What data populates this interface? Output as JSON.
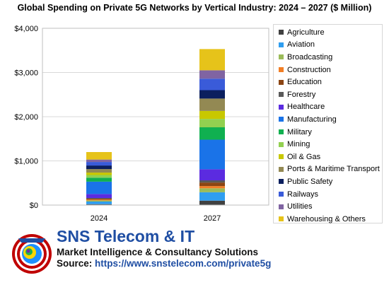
{
  "chart_data": {
    "type": "bar",
    "stacked": true,
    "title": "Global Spending on Private 5G Networks by Vertical Industry: 2024 – 2027 ($ Million)",
    "categories": [
      "2024",
      "2027"
    ],
    "ylim": [
      0,
      4000
    ],
    "yticks": [
      "$0",
      "$1,000",
      "$2,000",
      "$3,000",
      "$4,000"
    ],
    "ytick_values": [
      0,
      1000,
      2000,
      3000,
      4000
    ],
    "grid": true,
    "legend_position": "right",
    "series": [
      {
        "name": "Agriculture",
        "color": "#404040",
        "values": [
          20,
          100
        ]
      },
      {
        "name": "Aviation",
        "color": "#2f9ef0",
        "values": [
          60,
          190
        ]
      },
      {
        "name": "Broadcasting",
        "color": "#9bbb59",
        "values": [
          25,
          90
        ]
      },
      {
        "name": "Construction",
        "color": "#f27e25",
        "values": [
          20,
          50
        ]
      },
      {
        "name": "Education",
        "color": "#8b4513",
        "values": [
          20,
          80
        ]
      },
      {
        "name": "Forestry",
        "color": "#595959",
        "values": [
          15,
          50
        ]
      },
      {
        "name": "Healthcare",
        "color": "#5b2be0",
        "values": [
          90,
          250
        ]
      },
      {
        "name": "Manufacturing",
        "color": "#1a73e8",
        "values": [
          280,
          670
        ]
      },
      {
        "name": "Military",
        "color": "#10b050",
        "values": [
          90,
          280
        ]
      },
      {
        "name": "Mining",
        "color": "#92d050",
        "values": [
          60,
          190
        ]
      },
      {
        "name": "Oil & Gas",
        "color": "#c8c800",
        "values": [
          55,
          180
        ]
      },
      {
        "name": "Ports & Maritime Transport",
        "color": "#938953",
        "values": [
          80,
          280
        ]
      },
      {
        "name": "Public Safety",
        "color": "#0b1f5e",
        "values": [
          80,
          190
        ]
      },
      {
        "name": "Railways",
        "color": "#3a5bd9",
        "values": [
          80,
          260
        ]
      },
      {
        "name": "Utilities",
        "color": "#8064a2",
        "values": [
          55,
          190
        ]
      },
      {
        "name": "Warehousing & Others",
        "color": "#e6c31a",
        "values": [
          170,
          480
        ]
      }
    ]
  },
  "footer": {
    "brand": "SNS Telecom & IT",
    "tagline": "Market Intelligence & Consultancy Solutions",
    "source_label": "Source: ",
    "source_url": "https://www.snstelecom.com/private5g"
  }
}
